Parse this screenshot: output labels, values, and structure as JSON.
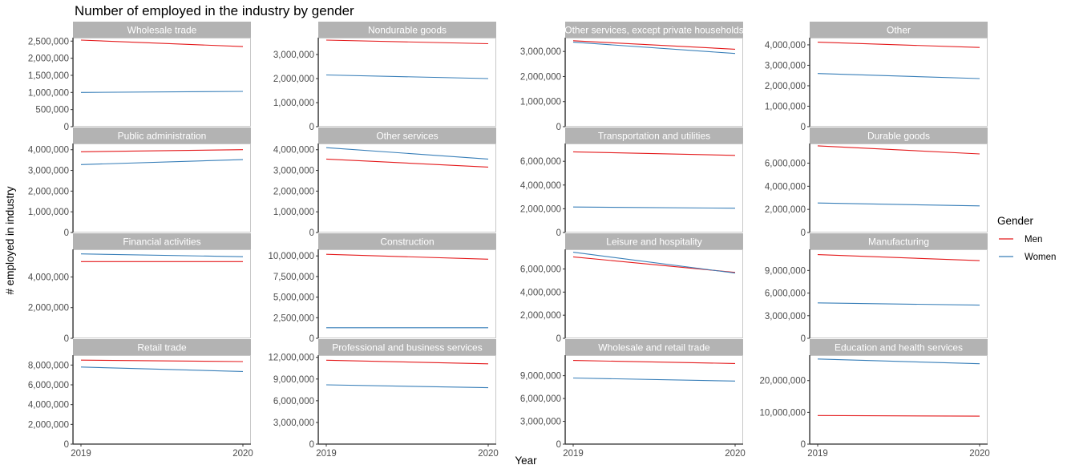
{
  "chart_data": {
    "type": "line",
    "title": "Number of employed in the industry by gender",
    "xlabel": "Year",
    "ylabel": "# employed in industry",
    "x": [
      2019,
      2020
    ],
    "x_tick_labels": [
      "2019",
      "2020"
    ],
    "grid": false,
    "legend": {
      "title": "Gender",
      "position": "right",
      "entries": [
        {
          "name": "Men",
          "color": "#E41A1C"
        },
        {
          "name": "Women",
          "color": "#377EB8"
        }
      ]
    },
    "colors": {
      "Men": "#E41A1C",
      "Women": "#377EB8",
      "strip": "#b3b3b3"
    },
    "panels": [
      {
        "name": "Wholesale trade",
        "ylim": [
          0,
          2600000
        ],
        "yticks": [
          0,
          500000,
          1000000,
          1500000,
          2000000,
          2500000
        ],
        "ytick_labels": [
          "0",
          "500,000",
          "1,000,000",
          "1,500,000",
          "2,000,000",
          "2,500,000"
        ],
        "series": [
          {
            "name": "Men",
            "values": [
              2530000,
              2340000
            ]
          },
          {
            "name": "Women",
            "values": [
              1000000,
              1030000
            ]
          }
        ]
      },
      {
        "name": "Nondurable goods",
        "ylim": [
          0,
          3700000
        ],
        "yticks": [
          0,
          1000000,
          2000000,
          3000000
        ],
        "ytick_labels": [
          "0",
          "1,000,000",
          "2,000,000",
          "3,000,000"
        ],
        "series": [
          {
            "name": "Men",
            "values": [
              3600000,
              3450000
            ]
          },
          {
            "name": "Women",
            "values": [
              2150000,
              2000000
            ]
          }
        ]
      },
      {
        "name": "Other services, except private households",
        "ylim": [
          0,
          3550000
        ],
        "yticks": [
          0,
          1000000,
          2000000,
          3000000
        ],
        "ytick_labels": [
          "0",
          "1,000,000",
          "2,000,000",
          "3,000,000"
        ],
        "series": [
          {
            "name": "Men",
            "values": [
              3430000,
              3090000
            ]
          },
          {
            "name": "Women",
            "values": [
              3370000,
              2920000
            ]
          }
        ]
      },
      {
        "name": "Other",
        "ylim": [
          0,
          4350000
        ],
        "yticks": [
          0,
          1000000,
          2000000,
          3000000,
          4000000
        ],
        "ytick_labels": [
          "0",
          "1,000,000",
          "2,000,000",
          "3,000,000",
          "4,000,000"
        ],
        "series": [
          {
            "name": "Men",
            "values": [
              4130000,
              3870000
            ]
          },
          {
            "name": "Women",
            "values": [
              2600000,
              2350000
            ]
          }
        ]
      },
      {
        "name": "Public administration",
        "ylim": [
          0,
          4300000
        ],
        "yticks": [
          0,
          1000000,
          2000000,
          3000000,
          4000000
        ],
        "ytick_labels": [
          "0",
          "1,000,000",
          "2,000,000",
          "3,000,000",
          "4,000,000"
        ],
        "series": [
          {
            "name": "Men",
            "values": [
              3900000,
              4000000
            ]
          },
          {
            "name": "Women",
            "values": [
              3280000,
              3520000
            ]
          }
        ]
      },
      {
        "name": "Other services",
        "ylim": [
          0,
          4300000
        ],
        "yticks": [
          0,
          1000000,
          2000000,
          3000000,
          4000000
        ],
        "ytick_labels": [
          "0",
          "1,000,000",
          "2,000,000",
          "3,000,000",
          "4,000,000"
        ],
        "series": [
          {
            "name": "Men",
            "values": [
              3550000,
              3160000
            ]
          },
          {
            "name": "Women",
            "values": [
              4100000,
              3550000
            ]
          }
        ]
      },
      {
        "name": "Transportation and utilities",
        "ylim": [
          0,
          7500000
        ],
        "yticks": [
          0,
          2000000,
          4000000,
          6000000
        ],
        "ytick_labels": [
          "0",
          "2,000,000",
          "4,000,000",
          "6,000,000"
        ],
        "series": [
          {
            "name": "Men",
            "values": [
              6800000,
              6500000
            ]
          },
          {
            "name": "Women",
            "values": [
              2150000,
              2050000
            ]
          }
        ]
      },
      {
        "name": "Durable goods",
        "ylim": [
          0,
          7700000
        ],
        "yticks": [
          0,
          2000000,
          4000000,
          6000000
        ],
        "ytick_labels": [
          "0",
          "2,000,000",
          "4,000,000",
          "6,000,000"
        ],
        "series": [
          {
            "name": "Men",
            "values": [
              7500000,
              6800000
            ]
          },
          {
            "name": "Women",
            "values": [
              2550000,
              2300000
            ]
          }
        ]
      },
      {
        "name": "Financial activities",
        "ylim": [
          0,
          5800000
        ],
        "yticks": [
          0,
          2000000,
          4000000
        ],
        "ytick_labels": [
          "0",
          "2,000,000",
          "4,000,000"
        ],
        "series": [
          {
            "name": "Men",
            "values": [
              5000000,
              5000000
            ]
          },
          {
            "name": "Women",
            "values": [
              5500000,
              5320000
            ]
          }
        ]
      },
      {
        "name": "Construction",
        "ylim": [
          0,
          10800000
        ],
        "yticks": [
          0,
          2500000,
          5000000,
          7500000,
          10000000
        ],
        "ytick_labels": [
          "0",
          "2,500,000",
          "5,000,000",
          "7,500,000",
          "10,000,000"
        ],
        "series": [
          {
            "name": "Men",
            "values": [
              10200000,
              9600000
            ]
          },
          {
            "name": "Women",
            "values": [
              1280000,
              1280000
            ]
          }
        ]
      },
      {
        "name": "Leisure and hospitality",
        "ylim": [
          0,
          7700000
        ],
        "yticks": [
          0,
          2000000,
          4000000,
          6000000
        ],
        "ytick_labels": [
          "0",
          "2,000,000",
          "4,000,000",
          "6,000,000"
        ],
        "series": [
          {
            "name": "Men",
            "values": [
              7050000,
              5700000
            ]
          },
          {
            "name": "Women",
            "values": [
              7450000,
              5650000
            ]
          }
        ]
      },
      {
        "name": "Manufacturing",
        "ylim": [
          0,
          11800000
        ],
        "yticks": [
          0,
          3000000,
          6000000,
          9000000
        ],
        "ytick_labels": [
          "0",
          "3,000,000",
          "6,000,000",
          "9,000,000"
        ],
        "series": [
          {
            "name": "Men",
            "values": [
              11100000,
              10300000
            ]
          },
          {
            "name": "Women",
            "values": [
              4700000,
              4400000
            ]
          }
        ]
      },
      {
        "name": "Retail trade",
        "ylim": [
          0,
          9000000
        ],
        "yticks": [
          0,
          2000000,
          4000000,
          6000000,
          8000000
        ],
        "ytick_labels": [
          "0",
          "2,000,000",
          "4,000,000",
          "6,000,000",
          "8,000,000"
        ],
        "series": [
          {
            "name": "Men",
            "values": [
              8500000,
              8350000
            ]
          },
          {
            "name": "Women",
            "values": [
              7800000,
              7350000
            ]
          }
        ]
      },
      {
        "name": "Professional and business services",
        "ylim": [
          0,
          12300000
        ],
        "yticks": [
          0,
          3000000,
          6000000,
          9000000,
          12000000
        ],
        "ytick_labels": [
          "0",
          "3,000,000",
          "6,000,000",
          "9,000,000",
          "12,000,000"
        ],
        "series": [
          {
            "name": "Men",
            "values": [
              11600000,
              11100000
            ]
          },
          {
            "name": "Women",
            "values": [
              8200000,
              7800000
            ]
          }
        ]
      },
      {
        "name": "Wholesale and retail trade",
        "ylim": [
          0,
          11700000
        ],
        "yticks": [
          0,
          3000000,
          6000000,
          9000000
        ],
        "ytick_labels": [
          "0",
          "3,000,000",
          "6,000,000",
          "9,000,000"
        ],
        "series": [
          {
            "name": "Men",
            "values": [
              11000000,
              10600000
            ]
          },
          {
            "name": "Women",
            "values": [
              8700000,
              8300000
            ]
          }
        ]
      },
      {
        "name": "Education and health services",
        "ylim": [
          0,
          28000000
        ],
        "yticks": [
          0,
          10000000,
          20000000
        ],
        "ytick_labels": [
          "0",
          "10,000,000",
          "20,000,000"
        ],
        "series": [
          {
            "name": "Men",
            "values": [
              9000000,
              8800000
            ]
          },
          {
            "name": "Women",
            "values": [
              26800000,
              25300000
            ]
          }
        ]
      }
    ]
  }
}
